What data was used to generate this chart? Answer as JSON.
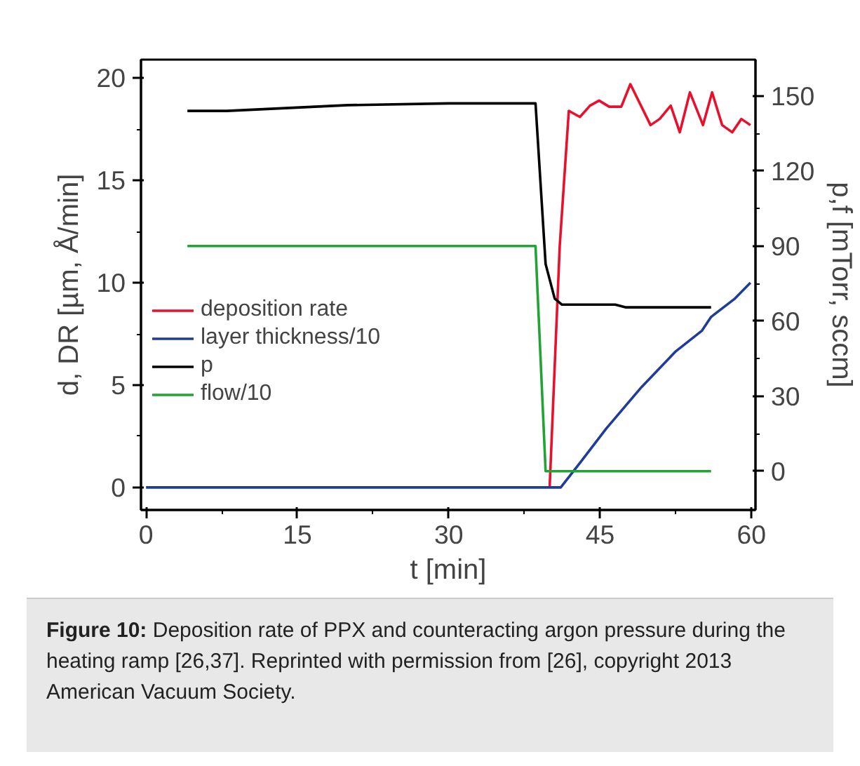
{
  "chart_data": {
    "type": "line",
    "xlabel": "t [min]",
    "ylabel": "d, DR [µm, Å/min]",
    "y2label": "p,f [mTorr, sccm]",
    "xlim": [
      -0.5,
      60.4
    ],
    "xticks": [
      0,
      15,
      30,
      45,
      60
    ],
    "ylim": [
      -1.1,
      20.9
    ],
    "yticks": [
      0,
      5,
      10,
      15,
      20
    ],
    "y2lim": [
      -15.5,
      164.5
    ],
    "y2ticks": [
      0,
      30,
      60,
      90,
      120,
      150
    ],
    "grid": false,
    "legend": "left",
    "line_style": "solid",
    "marker": "none",
    "series": [
      {
        "name": "deposition rate",
        "color": "#e8112d",
        "x": [
          40.0,
          41.0,
          41.9,
          43.0,
          44.0,
          44.9,
          45.9,
          47.1,
          48.0,
          50.0,
          50.9,
          52.0,
          52.9,
          53.9,
          55.2,
          56.1,
          57.1,
          58.1,
          59.0,
          59.9
        ],
        "values": [
          0,
          11.8,
          18.4,
          18.1,
          18.65,
          18.9,
          18.6,
          18.6,
          19.7,
          17.7,
          18.0,
          18.65,
          17.35,
          19.3,
          17.7,
          19.3,
          17.7,
          17.35,
          18.0,
          17.7
        ]
      },
      {
        "name": "layer thickness/10",
        "color": "#1f3c99",
        "x": [
          0,
          41.1,
          43.1,
          45.6,
          49.1,
          52.5,
          55.1,
          56.0,
          58.3,
          59.9
        ],
        "values": [
          0,
          0,
          1.26,
          2.87,
          4.9,
          6.65,
          7.66,
          8.33,
          9.2,
          10.0
        ]
      },
      {
        "name": "p",
        "color": "#000000",
        "axis": "y2",
        "x": [
          4.1,
          8.0,
          20.0,
          30.0,
          38.6,
          39.6,
          40.5,
          41.2,
          46.5,
          47.5,
          56.0
        ],
        "values": [
          144,
          144,
          146.3,
          147,
          147,
          82.8,
          69,
          66.6,
          66.6,
          65.5,
          65.5
        ]
      },
      {
        "name": "flow/10",
        "color": "#21a336",
        "axis": "y2",
        "x": [
          4.1,
          38.6,
          39.6,
          56.0
        ],
        "values": [
          90,
          90,
          0,
          0
        ]
      }
    ],
    "annotations": [
      "Figure 10: Deposition rate of PPX and counteracting argon pressure during the heating ramp [26,37]. Reprinted with permission from [26], copyright 2013 American Vacuum Society."
    ]
  }
}
